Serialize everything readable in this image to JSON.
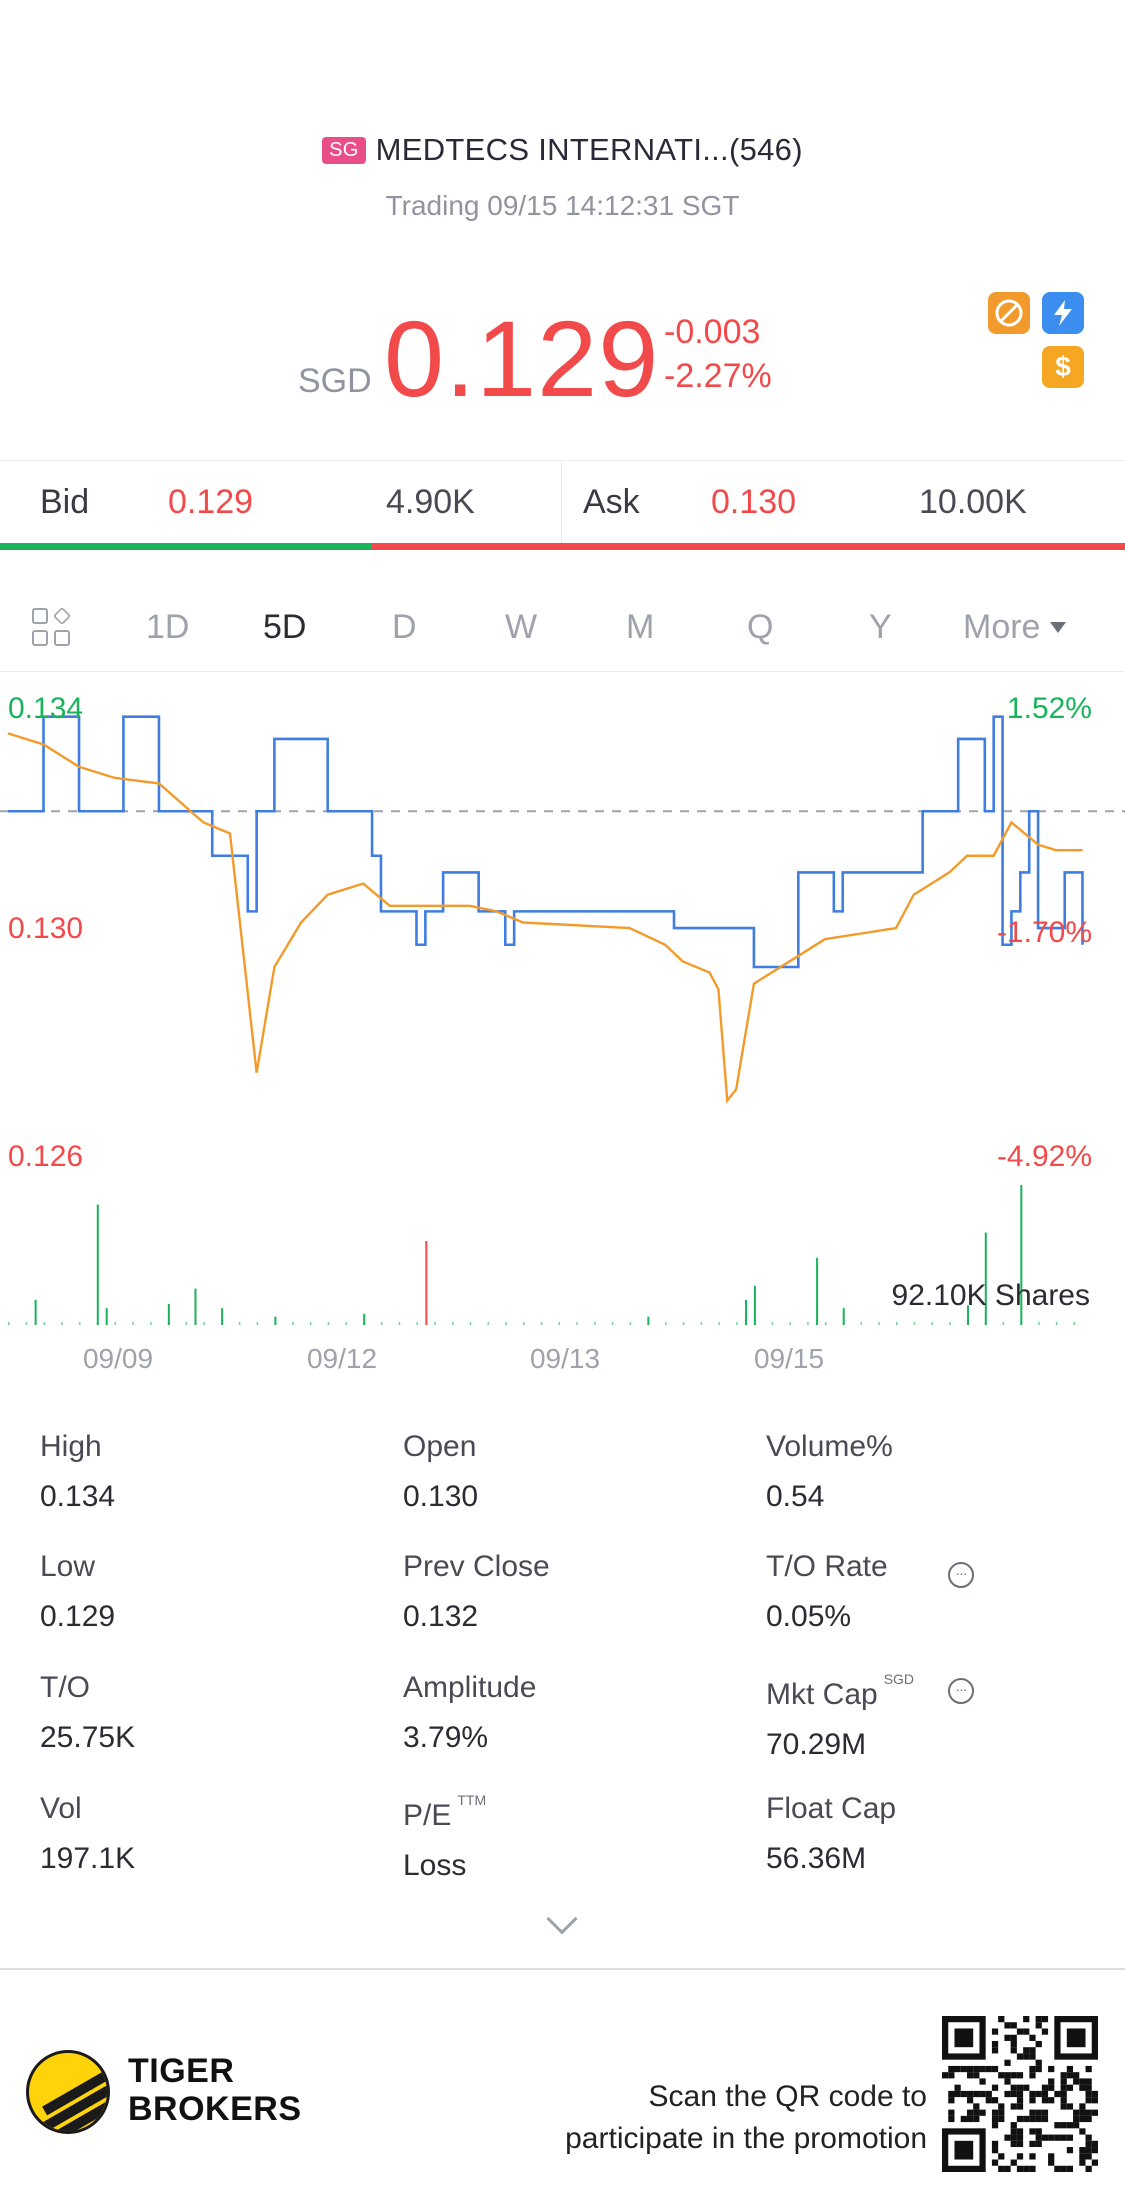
{
  "header": {
    "market_badge": "SG",
    "title": "MEDTECS INTERNATI...(546)",
    "status": "Trading 09/15 14:12:31 SGT",
    "currency": "SGD",
    "price": "0.129",
    "change": "-0.003",
    "change_pct": "-2.27%",
    "icons": [
      "no-short-icon",
      "lightning-icon",
      "dollar-icon"
    ]
  },
  "bidask": {
    "bid_label": "Bid",
    "bid_price": "0.129",
    "bid_qty": "4.90K",
    "ask_label": "Ask",
    "ask_price": "0.130",
    "ask_qty": "10.00K",
    "bid_ratio": 0.33
  },
  "tabs": [
    {
      "label": "1D",
      "active": false
    },
    {
      "label": "5D",
      "active": true
    },
    {
      "label": "D",
      "active": false
    },
    {
      "label": "W",
      "active": false
    },
    {
      "label": "M",
      "active": false
    },
    {
      "label": "Q",
      "active": false
    },
    {
      "label": "Y",
      "active": false
    },
    {
      "label": "More",
      "active": false
    }
  ],
  "chart_data": {
    "type": "line",
    "y_left_ticks": [
      "0.134",
      "0.130",
      "0.126"
    ],
    "y_right_ticks": [
      "1.52%",
      "-1.70%",
      "-4.92%"
    ],
    "ylim": [
      0.126,
      0.134
    ],
    "prev_close": 0.132,
    "x_ticks": [
      "09/09",
      "09/12",
      "09/13",
      "09/15"
    ],
    "volume_label": "92.10K Shares",
    "series": [
      {
        "color": "#3f7de0",
        "points": [
          [
            0,
            0.132
          ],
          [
            3,
            0.132
          ],
          [
            4,
            0.1337
          ],
          [
            7,
            0.1337
          ],
          [
            8,
            0.132
          ],
          [
            12,
            0.132
          ],
          [
            13,
            0.1337
          ],
          [
            16,
            0.1337
          ],
          [
            17,
            0.132
          ],
          [
            22,
            0.132
          ],
          [
            23,
            0.1312
          ],
          [
            25,
            0.1312
          ],
          [
            27,
            0.1302
          ],
          [
            28,
            0.132
          ],
          [
            30,
            0.1333
          ],
          [
            34,
            0.1333
          ],
          [
            36,
            0.132
          ],
          [
            40,
            0.132
          ],
          [
            41,
            0.1312
          ],
          [
            42,
            0.1302
          ],
          [
            44,
            0.1302
          ],
          [
            46,
            0.1296
          ],
          [
            47,
            0.1302
          ],
          [
            49,
            0.1309
          ],
          [
            52,
            0.1309
          ],
          [
            53,
            0.1302
          ],
          [
            55,
            0.1302
          ],
          [
            56,
            0.1296
          ],
          [
            57,
            0.1302
          ],
          [
            74,
            0.1302
          ],
          [
            75,
            0.1299
          ],
          [
            83,
            0.1299
          ],
          [
            84,
            0.1292
          ],
          [
            88,
            0.1292
          ],
          [
            89,
            0.1309
          ],
          [
            92,
            0.1309
          ],
          [
            93,
            0.1302
          ],
          [
            94,
            0.1309
          ],
          [
            102,
            0.1309
          ],
          [
            103,
            0.132
          ],
          [
            106,
            0.132
          ],
          [
            107,
            0.1333
          ],
          [
            109,
            0.1333
          ],
          [
            110,
            0.132
          ],
          [
            111,
            0.1337
          ],
          [
            112,
            0.1296
          ],
          [
            113,
            0.1302
          ],
          [
            114,
            0.1309
          ],
          [
            115,
            0.132
          ],
          [
            116,
            0.1299
          ],
          [
            118,
            0.1299
          ],
          [
            119,
            0.1309
          ],
          [
            120,
            0.1309
          ],
          [
            121,
            0.1296
          ]
        ]
      },
      {
        "color": "#f29b2c",
        "points": [
          [
            0,
            0.1334
          ],
          [
            4,
            0.1332
          ],
          [
            8,
            0.1328
          ],
          [
            12,
            0.1326
          ],
          [
            17,
            0.1325
          ],
          [
            22,
            0.1318
          ],
          [
            25,
            0.1316
          ],
          [
            28,
            0.1273
          ],
          [
            30,
            0.1292
          ],
          [
            33,
            0.13
          ],
          [
            36,
            0.1305
          ],
          [
            40,
            0.1307
          ],
          [
            43,
            0.1303
          ],
          [
            48,
            0.1303
          ],
          [
            52,
            0.1303
          ],
          [
            55,
            0.1302
          ],
          [
            58,
            0.13
          ],
          [
            70,
            0.1299
          ],
          [
            74,
            0.1296
          ],
          [
            76,
            0.1293
          ],
          [
            79,
            0.1291
          ],
          [
            80,
            0.1288
          ],
          [
            81,
            0.1268
          ],
          [
            82,
            0.127
          ],
          [
            84,
            0.1289
          ],
          [
            88,
            0.1293
          ],
          [
            92,
            0.1297
          ],
          [
            96,
            0.1298
          ],
          [
            100,
            0.1299
          ],
          [
            102,
            0.1305
          ],
          [
            106,
            0.1309
          ],
          [
            108,
            0.1312
          ],
          [
            111,
            0.1312
          ],
          [
            113,
            0.1318
          ],
          [
            116,
            0.1314
          ],
          [
            118,
            0.1313
          ],
          [
            121,
            0.1313
          ]
        ]
      }
    ],
    "volume": [
      [
        3,
        0.18
      ],
      [
        10,
        0.86
      ],
      [
        11,
        0.12
      ],
      [
        18,
        0.15
      ],
      [
        21,
        0.26
      ],
      [
        24,
        0.12
      ],
      [
        30,
        0.06
      ],
      [
        40,
        0.08
      ],
      [
        47,
        0.6
      ],
      [
        72,
        0.06
      ],
      [
        83,
        0.18
      ],
      [
        84,
        0.28
      ],
      [
        91,
        0.48
      ],
      [
        94,
        0.12
      ],
      [
        108,
        0.14
      ],
      [
        110,
        0.66
      ],
      [
        114,
        1.0
      ]
    ],
    "volume_red_index": 47
  },
  "stats": [
    {
      "label": "High",
      "value": "0.134"
    },
    {
      "label": "Open",
      "value": "0.130"
    },
    {
      "label": "Volume%",
      "value": "0.54"
    },
    {
      "label": "Low",
      "value": "0.129"
    },
    {
      "label": "Prev Close",
      "value": "0.132"
    },
    {
      "label": "T/O Rate",
      "value": "0.05%"
    },
    {
      "label": "T/O",
      "value": "25.75K"
    },
    {
      "label": "Amplitude",
      "value": "3.79%"
    },
    {
      "label": "Mkt Cap",
      "value": "70.29M",
      "sup": "SGD"
    },
    {
      "label": "Vol",
      "value": "197.1K"
    },
    {
      "label": "P/E",
      "value": "Loss",
      "sup": "TTM"
    },
    {
      "label": "Float Cap",
      "value": "56.36M"
    }
  ],
  "footer": {
    "brand_line1": "TIGER",
    "brand_line2": "BROKERS",
    "promo_line1": "Scan the QR code to",
    "promo_line2": "participate in the promotion"
  },
  "colors": {
    "up": "#18b35a",
    "down": "#f24a4a",
    "price_line": "#3f7de0",
    "avg_line": "#f29b2c"
  }
}
